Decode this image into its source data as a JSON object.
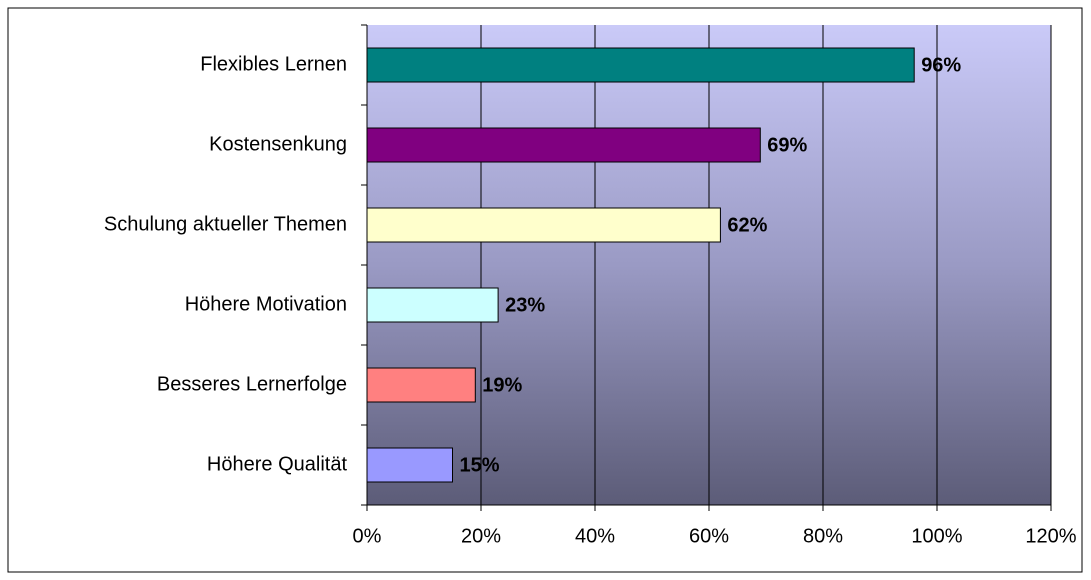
{
  "chart_data": {
    "type": "bar",
    "orientation": "horizontal",
    "categories": [
      "Flexibles Lernen",
      "Kostensenkung",
      "Schulung aktueller Themen",
      "Höhere Motivation",
      "Besseres Lernerfolge",
      "Höhere Qualität"
    ],
    "values": [
      96,
      69,
      62,
      23,
      19,
      15
    ],
    "value_labels": [
      "96%",
      "69%",
      "62%",
      "23%",
      "19%",
      "15%"
    ],
    "colors": [
      "#008080",
      "#800080",
      "#ffffcc",
      "#ccffff",
      "#ff8080",
      "#9999ff"
    ],
    "xlim": [
      0,
      120
    ],
    "xticks": [
      {
        "value": 0,
        "label": "0%"
      },
      {
        "value": 20,
        "label": "20%"
      },
      {
        "value": 40,
        "label": "40%"
      },
      {
        "value": 60,
        "label": "60%"
      },
      {
        "value": 80,
        "label": "80%"
      },
      {
        "value": 100,
        "label": "100%"
      },
      {
        "value": 120,
        "label": "120%"
      }
    ],
    "grid": true
  }
}
